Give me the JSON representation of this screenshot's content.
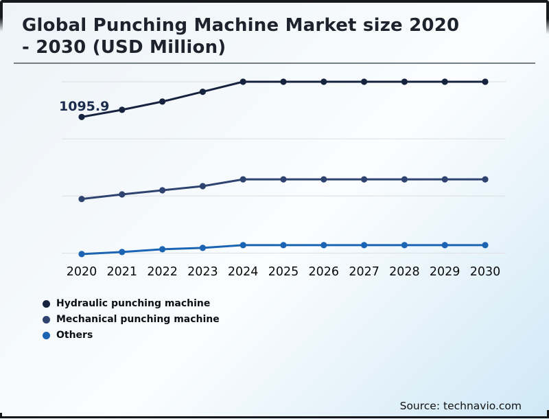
{
  "header": {
    "title_line1": "Global Punching Machine Market size 2020",
    "title_line2": "- 2030 (USD Million)"
  },
  "chart_data": {
    "type": "line",
    "title": "Global Punching Machine Market size 2020 - 2030 (USD Million)",
    "x": [
      2020,
      2021,
      2022,
      2023,
      2024,
      2025,
      2026,
      2027,
      2028,
      2029,
      2030
    ],
    "series": [
      {
        "name": "Hydraulic punching machine",
        "color": "#16233e",
        "values": [
          1095.9,
          1127,
          1163,
          1206,
          1250,
          1250,
          1250,
          1250,
          1250,
          1250,
          1250
        ]
      },
      {
        "name": "Mechanical punching machine",
        "color": "#2f4370",
        "values": [
          737,
          757,
          775,
          793,
          823,
          823,
          823,
          823,
          823,
          823,
          823
        ]
      },
      {
        "name": "Others",
        "color": "#1b64b4",
        "values": [
          496,
          505,
          517,
          523,
          535,
          535,
          535,
          535,
          535,
          535,
          535
        ]
      }
    ],
    "annotation": {
      "text": "1095.9",
      "series": "Hydraulic punching machine",
      "x": 2020
    },
    "gridlines": [
      1250,
      1000,
      750,
      500
    ],
    "ylim": [
      400,
      1320
    ],
    "grid": "horizontal-only",
    "legend_position": "bottom-left",
    "gridline_color": "#dfe3e6"
  },
  "footer": {
    "source": "Source: technavio.com"
  }
}
